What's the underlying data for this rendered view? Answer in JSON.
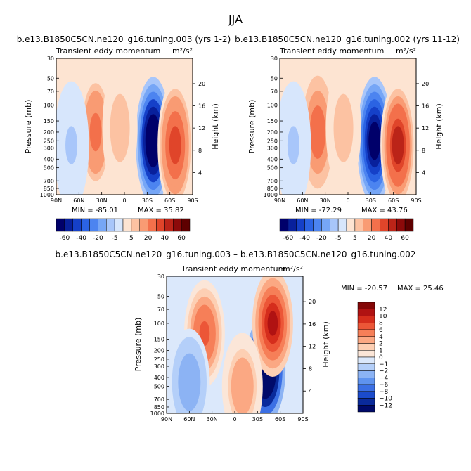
{
  "page_title": "JJA",
  "y_ticks": [
    "30",
    "50",
    "70",
    "100",
    "150",
    "200",
    "250",
    "300",
    "400",
    "500",
    "700",
    "850",
    "1000"
  ],
  "x_ticks": [
    "90N",
    "60N",
    "30N",
    "0",
    "30S",
    "60S",
    "90S"
  ],
  "height_ticks": [
    "20",
    "16",
    "12",
    "8",
    "4"
  ],
  "axis": {
    "ylabel": "Pressure (mb)",
    "ylabel_right": "Height (km)"
  },
  "chart_data": [
    {
      "type": "heatmap",
      "title": "b.e13.B1850C5CN.ne120_g16.tuning.003 (yrs 1-2)",
      "subtitle": "Transient eddy momentum",
      "units": "m²/s²",
      "stats": {
        "min_label": "MIN = -85.01",
        "max_label": "MAX = 35.82"
      },
      "xlim": [
        "90N",
        "90S"
      ],
      "ylim": [
        1000,
        30
      ],
      "features": [
        {
          "lat": -38,
          "p": 250,
          "value": -85
        },
        {
          "lat": -67,
          "p": 280,
          "value": 35
        },
        {
          "lat": 38,
          "p": 200,
          "value": 22
        },
        {
          "lat": 6,
          "p": 180,
          "value": 9
        },
        {
          "lat": 70,
          "p": 280,
          "value": -6
        }
      ],
      "colorbar": {
        "labels": [
          "-60",
          "-40",
          "-20",
          "-5",
          "5",
          "20",
          "40",
          "60"
        ]
      }
    },
    {
      "type": "heatmap",
      "title": "b.e13.B1850C5CN.ne120_g16.tuning.002 (yrs 11-12)",
      "subtitle": "Transient eddy momentum",
      "units": "m²/s²",
      "stats": {
        "min_label": "MIN = -72.29",
        "max_label": "MAX = 43.76"
      },
      "xlim": [
        "90N",
        "90S"
      ],
      "ylim": [
        1000,
        30
      ],
      "features": [
        {
          "lat": -35,
          "p": 250,
          "value": -72
        },
        {
          "lat": -66,
          "p": 280,
          "value": 44
        },
        {
          "lat": 40,
          "p": 200,
          "value": 25
        },
        {
          "lat": 6,
          "p": 180,
          "value": 8
        },
        {
          "lat": 72,
          "p": 280,
          "value": -6
        }
      ],
      "colorbar": {
        "labels": [
          "-60",
          "-40",
          "-20",
          "-5",
          "5",
          "20",
          "40",
          "60"
        ]
      }
    },
    {
      "type": "heatmap",
      "title": "b.e13.B1850C5CN.ne120_g16.tuning.003 – b.e13.B1850C5CN.ne120_g16.tuning.002",
      "subtitle": "Transient eddy momentum",
      "units": "m²/s²",
      "stats": {
        "min_label": "MIN = -20.57",
        "max_label": "MAX =  25.46"
      },
      "xlim": [
        "90N",
        "90S"
      ],
      "ylim": [
        1000,
        30
      ],
      "features": [
        {
          "lat": -40,
          "p": 330,
          "value": -20.5
        },
        {
          "lat": -50,
          "p": 100,
          "value": 10
        },
        {
          "lat": 40,
          "p": 130,
          "value": 6
        },
        {
          "lat": 60,
          "p": 450,
          "value": -4
        },
        {
          "lat": -10,
          "p": 500,
          "value": 3
        }
      ],
      "colorbar": {
        "labels": [
          "12",
          "10",
          "8",
          "6",
          "4",
          "2",
          "1",
          "0",
          "−1",
          "−2",
          "−4",
          "−6",
          "−8",
          "−10",
          "−12"
        ]
      }
    }
  ],
  "colors": {
    "full_scale": [
      "#00006a",
      "#08209c",
      "#1540c8",
      "#2b63e3",
      "#4c84f0",
      "#76a6f6",
      "#a8c6fa",
      "#d7e6fc",
      "#fde4d2",
      "#fcc2a2",
      "#f99b73",
      "#f3704b",
      "#e0452a",
      "#bb2418",
      "#8c0a0a",
      "#5e0000"
    ],
    "diff_scale": [
      "#840707",
      "#b01212",
      "#d52d1c",
      "#ec5637",
      "#f67f58",
      "#fba883",
      "#fdcfb3",
      "#fbe6d8",
      "#dbe8fb",
      "#b4cff9",
      "#8cb3f4",
      "#5f93ef",
      "#3b6fe4",
      "#1b4bcc",
      "#0a2a9b",
      "#000a6a"
    ]
  }
}
